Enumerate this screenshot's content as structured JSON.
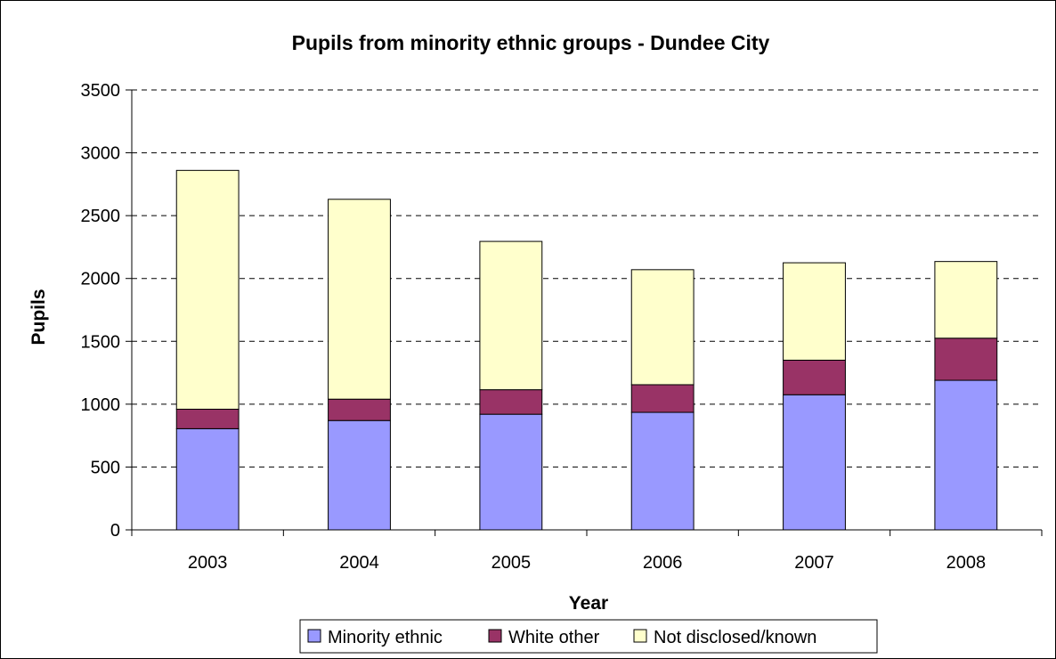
{
  "chart_data": {
    "type": "bar",
    "stacked": true,
    "title": "Pupils from minority ethnic groups - Dundee City",
    "xlabel": "Year",
    "ylabel": "Pupils",
    "categories": [
      "2003",
      "2004",
      "2005",
      "2006",
      "2007",
      "2008"
    ],
    "ylim": [
      0,
      3500
    ],
    "yticks": [
      0,
      500,
      1000,
      1500,
      2000,
      2500,
      3000,
      3500
    ],
    "grid": true,
    "legend_position": "bottom",
    "series": [
      {
        "name": "Minority ethnic",
        "color": "#9999FF",
        "values": [
          805,
          870,
          920,
          935,
          1075,
          1190
        ]
      },
      {
        "name": "White other",
        "color": "#993366",
        "values": [
          155,
          170,
          195,
          220,
          275,
          335
        ]
      },
      {
        "name": "Not disclosed/known",
        "color": "#FFFFCC",
        "values": [
          1900,
          1590,
          1180,
          915,
          775,
          610
        ]
      }
    ]
  }
}
